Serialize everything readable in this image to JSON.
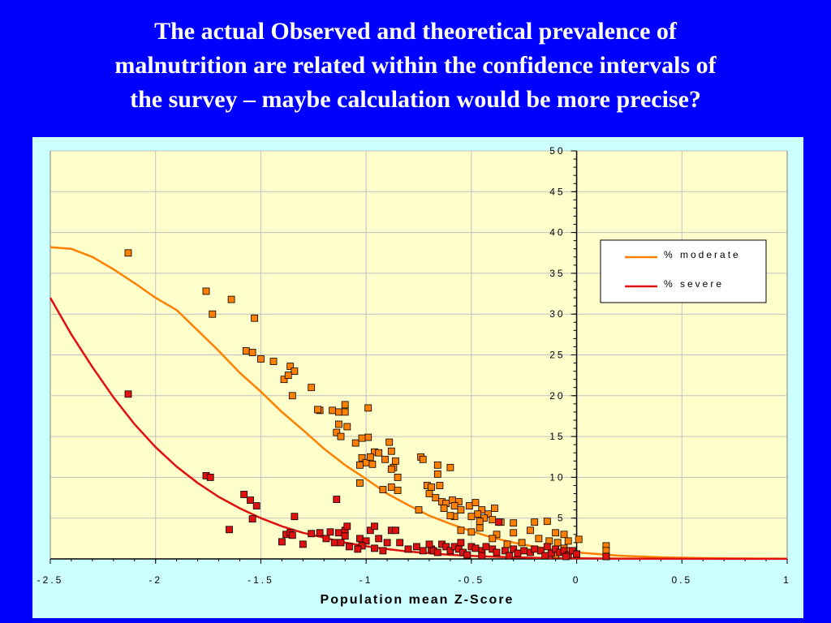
{
  "slide": {
    "title_lines": [
      "The actual Observed and theoretical prevalence of",
      "malnutrition are related within the confidence intervals of",
      "the survey – maybe calculation would be more precise?"
    ]
  },
  "colors": {
    "background": "#0000ff",
    "panel": "#ccffff",
    "plot_area": "#ffffcc",
    "moderate": "#ff8000",
    "severe": "#e01010",
    "gridline": "#c0c0c0"
  },
  "chart_data": {
    "type": "scatter",
    "title": "",
    "xlabel": "Population mean Z-Score",
    "ylabel": "",
    "xlim": [
      -2.5,
      1
    ],
    "ylim": [
      0,
      50
    ],
    "x_ticks": [
      "-2.5",
      "-2",
      "-1.5",
      "-1",
      "-0.5",
      "0",
      "0.5",
      "1"
    ],
    "y_ticks": [
      "5",
      "10",
      "15",
      "20",
      "25",
      "30",
      "35",
      "40",
      "45",
      "50"
    ],
    "grid": true,
    "legend_position": "right",
    "series": [
      {
        "name": "% moderate",
        "color": "#ff8000",
        "curve": [
          [
            -2.5,
            38.2
          ],
          [
            -2.4,
            38
          ],
          [
            -2.3,
            37
          ],
          [
            -2.2,
            35.5
          ],
          [
            -2.1,
            33.8
          ],
          [
            -2,
            32
          ],
          [
            -1.9,
            30.5
          ],
          [
            -1.8,
            28
          ],
          [
            -1.7,
            25.5
          ],
          [
            -1.6,
            22.8
          ],
          [
            -1.5,
            20.5
          ],
          [
            -1.4,
            18
          ],
          [
            -1.3,
            15.8
          ],
          [
            -1.2,
            13.5
          ],
          [
            -1.1,
            11.5
          ],
          [
            -1,
            9.8
          ],
          [
            -0.9,
            8
          ],
          [
            -0.8,
            6.6
          ],
          [
            -0.7,
            5.3
          ],
          [
            -0.6,
            4.3
          ],
          [
            -0.5,
            3.4
          ],
          [
            -0.4,
            2.6
          ],
          [
            -0.3,
            2
          ],
          [
            -0.2,
            1.5
          ],
          [
            -0.1,
            1.1
          ],
          [
            0,
            0.8
          ],
          [
            0.1,
            0.6
          ],
          [
            0.2,
            0.4
          ],
          [
            0.3,
            0.3
          ],
          [
            0.4,
            0.2
          ],
          [
            0.6,
            0.1
          ],
          [
            0.8,
            0.05
          ],
          [
            1,
            0.02
          ]
        ],
        "points": [
          [
            -2.13,
            37.5
          ],
          [
            -1.76,
            32.8
          ],
          [
            -1.64,
            31.8
          ],
          [
            -1.73,
            30
          ],
          [
            -1.53,
            29.5
          ],
          [
            -1.57,
            25.5
          ],
          [
            -1.54,
            25.3
          ],
          [
            -1.5,
            24.5
          ],
          [
            -1.44,
            24.2
          ],
          [
            -1.36,
            23.6
          ],
          [
            -1.34,
            23
          ],
          [
            -1.39,
            22
          ],
          [
            -1.37,
            22.5
          ],
          [
            -1.35,
            20
          ],
          [
            -1.26,
            21
          ],
          [
            -1.22,
            18.2
          ],
          [
            -1.16,
            18.2
          ],
          [
            -1.13,
            18
          ],
          [
            -1.1,
            18
          ],
          [
            -1.1,
            18.9
          ],
          [
            -0.99,
            18.5
          ],
          [
            -1.23,
            18.3
          ],
          [
            -1.13,
            16.5
          ],
          [
            -1.09,
            16.2
          ],
          [
            -1.14,
            15.5
          ],
          [
            -1.12,
            15
          ],
          [
            -1.05,
            14.2
          ],
          [
            -0.99,
            14.9
          ],
          [
            -1.02,
            14.8
          ],
          [
            -0.96,
            13.1
          ],
          [
            -0.94,
            13
          ],
          [
            -0.91,
            12.2
          ],
          [
            -0.89,
            14.3
          ],
          [
            -0.88,
            13.2
          ],
          [
            -1.02,
            12.4
          ],
          [
            -1,
            11.8
          ],
          [
            -0.98,
            12.5
          ],
          [
            -0.97,
            11.6
          ],
          [
            -1.03,
            11.5
          ],
          [
            -0.87,
            11.2
          ],
          [
            -0.86,
            12
          ],
          [
            -0.88,
            11
          ],
          [
            -0.85,
            10
          ],
          [
            -1.03,
            9.3
          ],
          [
            -0.92,
            8.5
          ],
          [
            -0.88,
            8.8
          ],
          [
            -0.85,
            8.4
          ],
          [
            -0.74,
            12.5
          ],
          [
            -0.73,
            12.2
          ],
          [
            -0.66,
            11.5
          ],
          [
            -0.6,
            11.2
          ],
          [
            -0.66,
            10.4
          ],
          [
            -0.71,
            9
          ],
          [
            -0.69,
            8.8
          ],
          [
            -0.65,
            9
          ],
          [
            -0.7,
            8
          ],
          [
            -0.67,
            7.5
          ],
          [
            -0.64,
            7
          ],
          [
            -0.62,
            6.8
          ],
          [
            -0.59,
            7.2
          ],
          [
            -0.56,
            7
          ],
          [
            -0.58,
            6.5
          ],
          [
            -0.63,
            6.2
          ],
          [
            -0.55,
            6
          ],
          [
            -0.51,
            6.5
          ],
          [
            -0.48,
            6.9
          ],
          [
            -0.45,
            6
          ],
          [
            -0.42,
            5.5
          ],
          [
            -0.39,
            6.2
          ],
          [
            -0.47,
            5.5
          ],
          [
            -0.44,
            5
          ],
          [
            -0.5,
            5.2
          ],
          [
            -0.58,
            5.2
          ],
          [
            -0.6,
            5.3
          ],
          [
            -0.46,
            4.6
          ],
          [
            -0.4,
            4.8
          ],
          [
            -0.36,
            4.5
          ],
          [
            -0.3,
            4.4
          ],
          [
            -0.75,
            6
          ],
          [
            -0.55,
            3.5
          ],
          [
            -0.5,
            3.3
          ],
          [
            -0.46,
            3.8
          ],
          [
            -0.38,
            3
          ],
          [
            -0.3,
            3.2
          ],
          [
            -0.4,
            2.5
          ],
          [
            -0.2,
            4.5
          ],
          [
            -0.14,
            4.6
          ],
          [
            -0.22,
            3.5
          ],
          [
            -0.1,
            3.2
          ],
          [
            -0.06,
            3
          ],
          [
            -0.18,
            2.5
          ],
          [
            -0.13,
            2.2
          ],
          [
            -0.09,
            2
          ],
          [
            -0.04,
            2.2
          ],
          [
            0.01,
            2.4
          ],
          [
            -0.26,
            2
          ],
          [
            -0.33,
            1.8
          ],
          [
            0.14,
            1.6
          ],
          [
            0.14,
            1
          ],
          [
            0.14,
            0.3
          ],
          [
            -0.06,
            1.3
          ],
          [
            -0.1,
            0.5
          ],
          [
            0,
            0.6
          ],
          [
            -0.03,
            1
          ]
        ]
      },
      {
        "name": "% severe",
        "color": "#e01010",
        "curve": [
          [
            -2.5,
            32
          ],
          [
            -2.4,
            27.5
          ],
          [
            -2.3,
            23.5
          ],
          [
            -2.2,
            19.8
          ],
          [
            -2.1,
            16.5
          ],
          [
            -2,
            13.7
          ],
          [
            -1.9,
            11.3
          ],
          [
            -1.8,
            9.3
          ],
          [
            -1.7,
            7.6
          ],
          [
            -1.6,
            6.2
          ],
          [
            -1.5,
            5
          ],
          [
            -1.4,
            4
          ],
          [
            -1.3,
            3.2
          ],
          [
            -1.2,
            2.6
          ],
          [
            -1.1,
            2
          ],
          [
            -1,
            1.55
          ],
          [
            -0.9,
            1.2
          ],
          [
            -0.8,
            0.9
          ],
          [
            -0.7,
            0.7
          ],
          [
            -0.6,
            0.5
          ],
          [
            -0.5,
            0.37
          ],
          [
            -0.4,
            0.27
          ],
          [
            -0.3,
            0.2
          ],
          [
            -0.2,
            0.14
          ],
          [
            -0.1,
            0.1
          ],
          [
            0,
            0.07
          ],
          [
            0.2,
            0.04
          ],
          [
            0.4,
            0.02
          ],
          [
            0.7,
            0.01
          ],
          [
            1,
            0.005
          ]
        ],
        "points": [
          [
            -2.13,
            20.2
          ],
          [
            -1.76,
            10.2
          ],
          [
            -1.74,
            10
          ],
          [
            -1.58,
            7.9
          ],
          [
            -1.55,
            7.2
          ],
          [
            -1.52,
            6.5
          ],
          [
            -1.54,
            4.9
          ],
          [
            -1.65,
            3.6
          ],
          [
            -1.34,
            5.2
          ],
          [
            -1.38,
            3
          ],
          [
            -1.36,
            3.2
          ],
          [
            -1.35,
            2.9
          ],
          [
            -1.4,
            2.1
          ],
          [
            -1.3,
            1.8
          ],
          [
            -1.22,
            3.2
          ],
          [
            -1.17,
            3.3
          ],
          [
            -1.19,
            2.5
          ],
          [
            -1.15,
            2
          ],
          [
            -1.13,
            3.2
          ],
          [
            -1.12,
            2
          ],
          [
            -1.1,
            3.5
          ],
          [
            -1.09,
            4
          ],
          [
            -1.1,
            2.8
          ],
          [
            -1.14,
            7.3
          ],
          [
            -1.26,
            3.1
          ],
          [
            -1.03,
            2.5
          ],
          [
            -1,
            2.2
          ],
          [
            -0.98,
            3.5
          ],
          [
            -0.96,
            4
          ],
          [
            -1.02,
            1.6
          ],
          [
            -0.96,
            1.3
          ],
          [
            -0.94,
            2.5
          ],
          [
            -0.9,
            2
          ],
          [
            -0.88,
            3.5
          ],
          [
            -0.86,
            3.5
          ],
          [
            -0.92,
            1
          ],
          [
            -0.84,
            2
          ],
          [
            -0.8,
            1.2
          ],
          [
            -0.76,
            1.5
          ],
          [
            -0.73,
            1
          ],
          [
            -0.69,
            1.2
          ],
          [
            -0.68,
            1
          ],
          [
            -0.64,
            1.8
          ],
          [
            -0.62,
            1.5
          ],
          [
            -0.6,
            1
          ],
          [
            -0.58,
            1.5
          ],
          [
            -0.56,
            1.2
          ],
          [
            -0.54,
            0.8
          ],
          [
            -0.5,
            1.5
          ],
          [
            -0.48,
            1.3
          ],
          [
            -0.45,
            1
          ],
          [
            -0.43,
            1.5
          ],
          [
            -0.4,
            1.2
          ],
          [
            -0.38,
            0.8
          ],
          [
            -0.37,
            4.5
          ],
          [
            -0.34,
            1
          ],
          [
            -0.3,
            1.2
          ],
          [
            -0.28,
            0.7
          ],
          [
            -0.25,
            1
          ],
          [
            -0.22,
            0.8
          ],
          [
            -0.2,
            1.2
          ],
          [
            -0.17,
            1
          ],
          [
            -0.14,
            1.5
          ],
          [
            -0.12,
            0.7
          ],
          [
            -0.1,
            1.2
          ],
          [
            -0.08,
            0.8
          ],
          [
            -0.06,
            1
          ],
          [
            -0.04,
            0.5
          ],
          [
            -0.02,
            1
          ],
          [
            0,
            0.6
          ],
          [
            0.14,
            0.3
          ],
          [
            -0.7,
            1.8
          ],
          [
            -0.66,
            0.8
          ],
          [
            -0.55,
            2
          ],
          [
            -0.52,
            0.5
          ],
          [
            -0.45,
            0.4
          ],
          [
            -0.32,
            0.4
          ],
          [
            -0.15,
            0.4
          ],
          [
            -0.05,
            0.3
          ],
          [
            -1.08,
            1.5
          ],
          [
            -1.04,
            1.2
          ]
        ]
      }
    ]
  }
}
